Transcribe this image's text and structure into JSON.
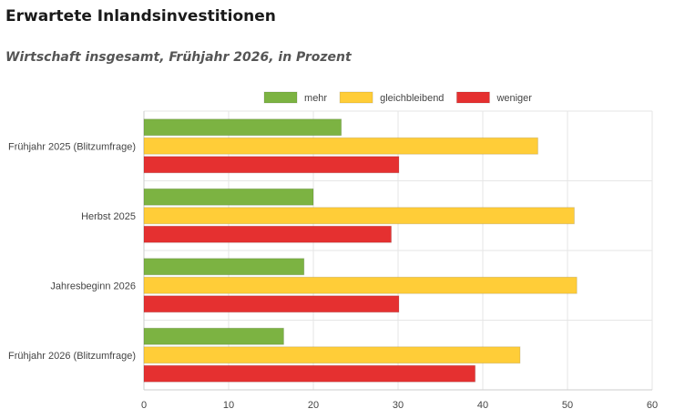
{
  "header": {
    "title": "Erwartete Inlandsinvestitionen",
    "subtitle": "Wirtschaft insgesamt, Frühjahr 2026, in Prozent"
  },
  "chart_data": {
    "type": "bar",
    "orientation": "horizontal",
    "categories": [
      "Frühjahr 2025 (Blitzumfrage)",
      "Herbst 2025",
      "Jahresbeginn 2026",
      "Frühjahr 2026 (Blitzumfrage)"
    ],
    "series": [
      {
        "name": "mehr",
        "color": "#7cb342",
        "values": [
          23.3,
          20.0,
          18.9,
          16.5
        ]
      },
      {
        "name": "gleichbleibend",
        "color": "#ffcd38",
        "values": [
          46.5,
          50.8,
          51.1,
          44.4
        ]
      },
      {
        "name": "weniger",
        "color": "#e53030",
        "values": [
          30.1,
          29.2,
          30.1,
          39.1
        ]
      }
    ],
    "xlim": [
      0,
      60
    ],
    "xticks": [
      0,
      10,
      20,
      30,
      40,
      50,
      60
    ],
    "grid": true,
    "legend": "top"
  }
}
